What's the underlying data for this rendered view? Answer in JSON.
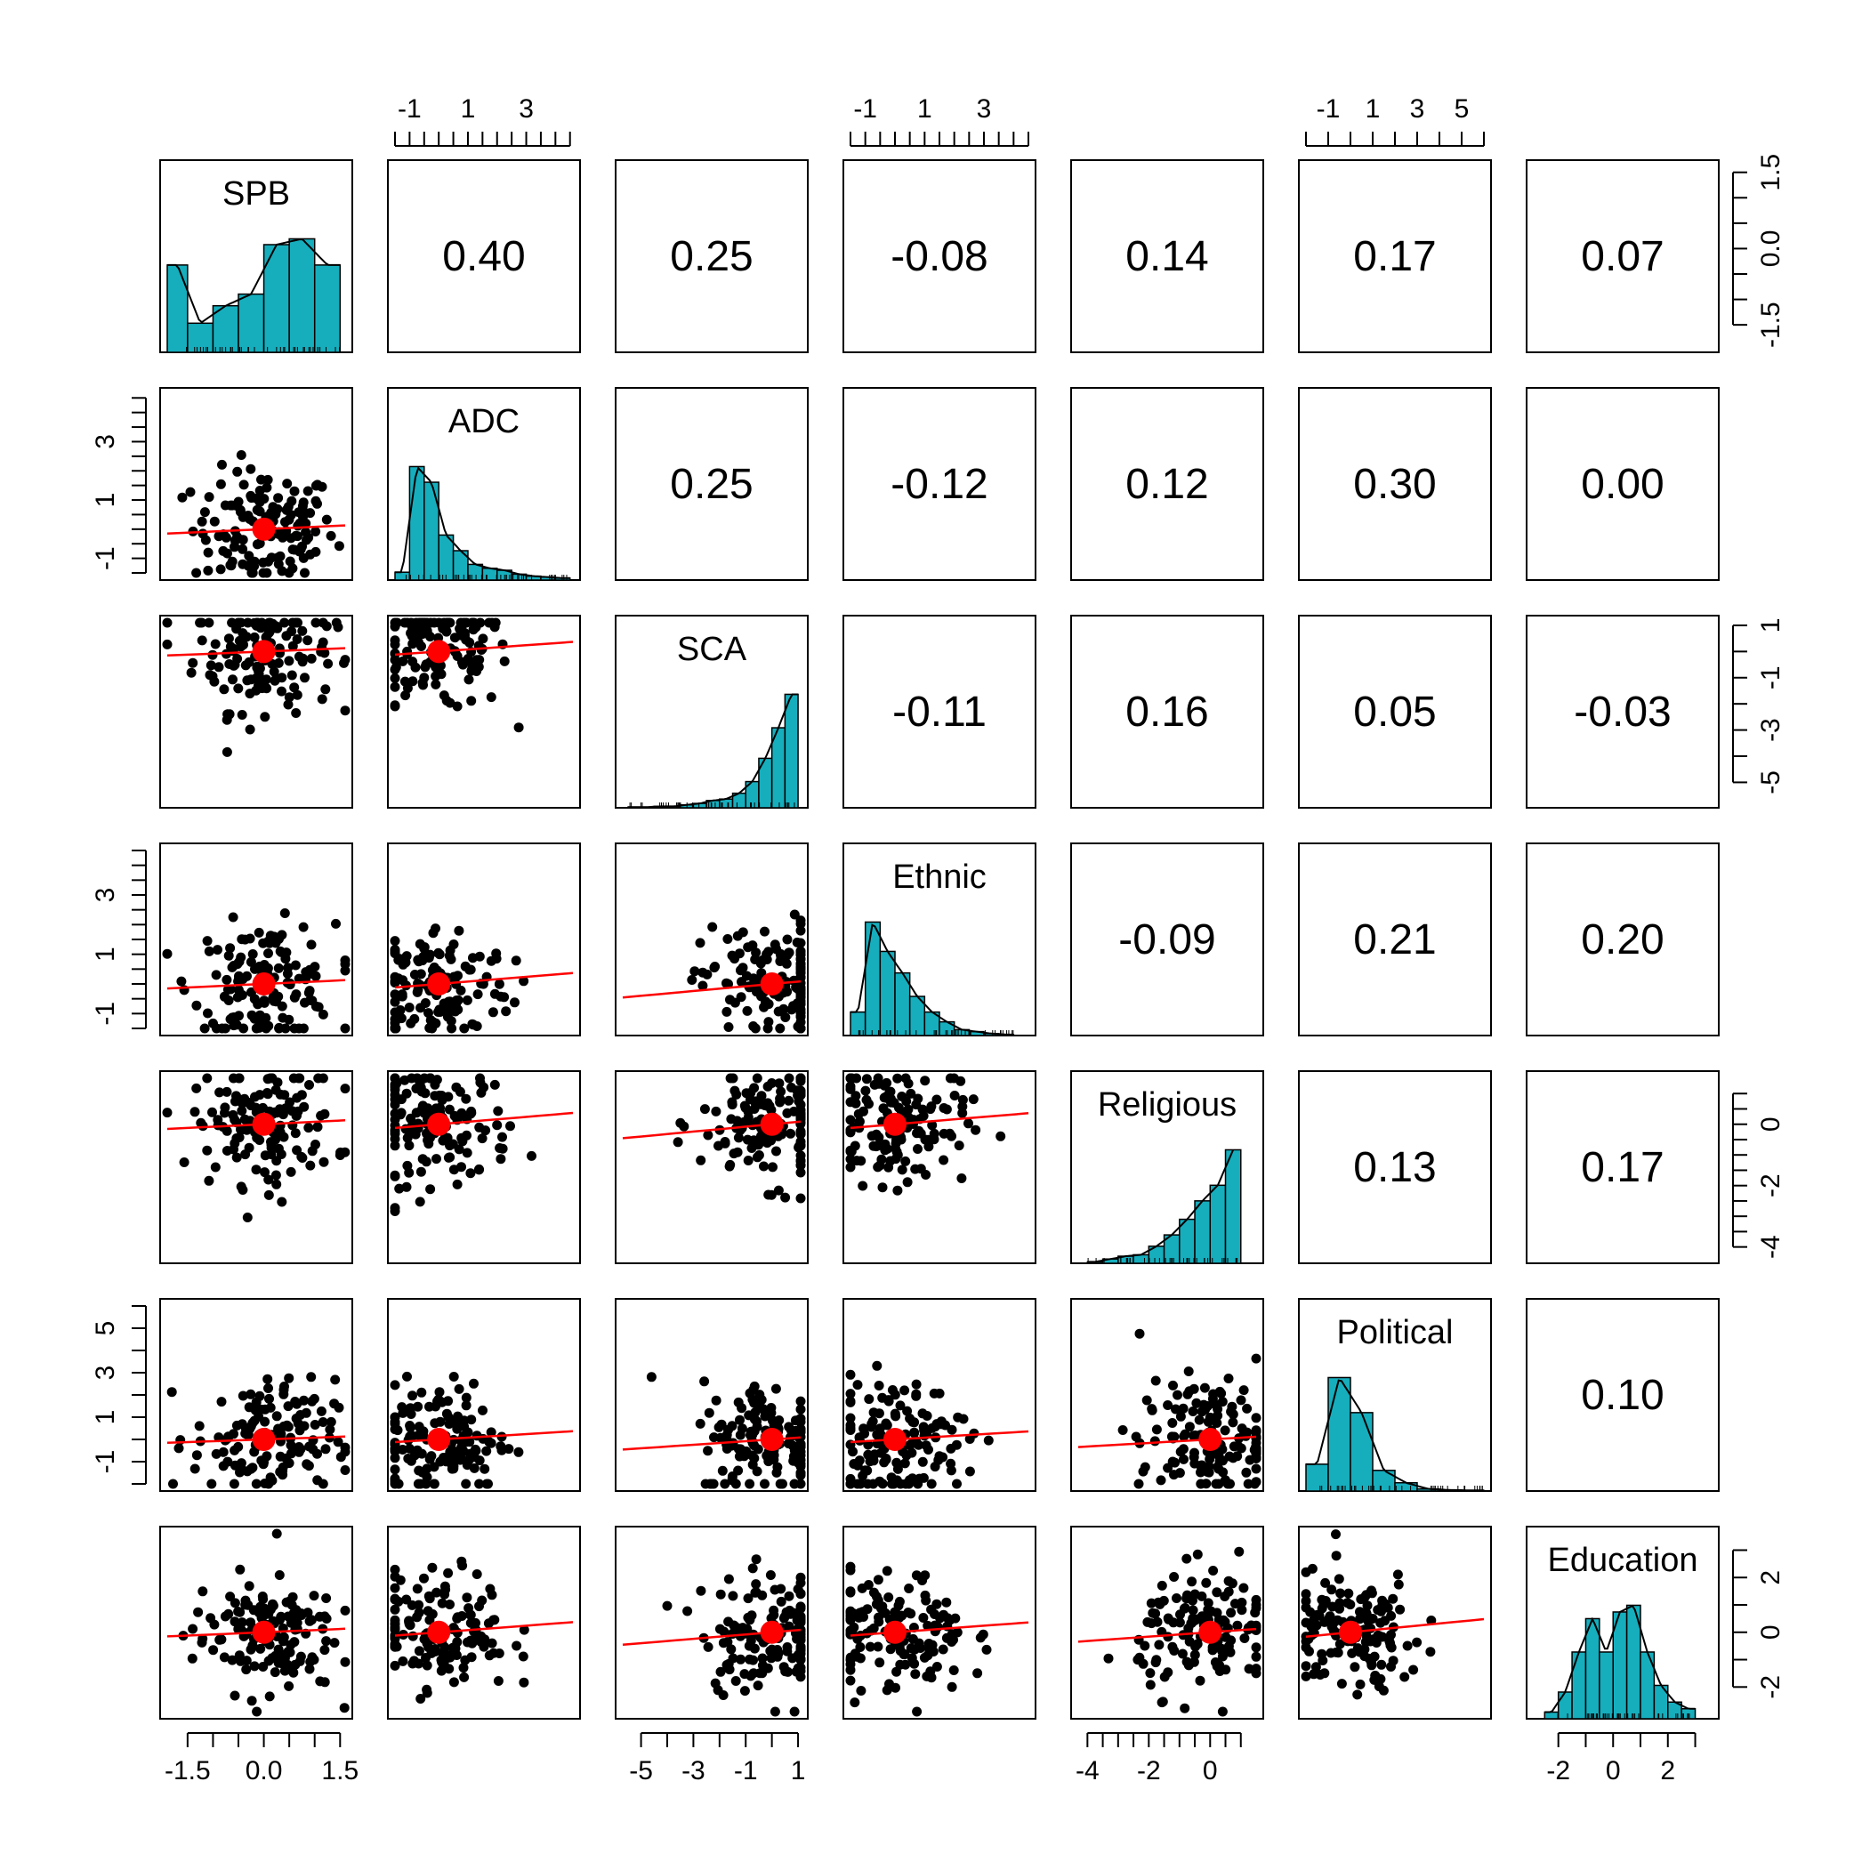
{
  "chart_data": {
    "type": "scatter-matrix",
    "variables": [
      "SPB",
      "ADC",
      "SCA",
      "Ethnic",
      "Religious",
      "Political",
      "Education"
    ],
    "correlations": [
      [
        "",
        "0.40",
        "0.25",
        "-0.08",
        "0.14",
        "0.17",
        "0.07"
      ],
      [
        "",
        "",
        "0.25",
        "-0.12",
        "0.12",
        "0.30",
        "0.00"
      ],
      [
        "",
        "",
        "",
        "-0.11",
        "0.16",
        "0.05",
        "-0.03"
      ],
      [
        "",
        "",
        "",
        "",
        "-0.09",
        "0.21",
        "0.20"
      ],
      [
        "",
        "",
        "",
        "",
        "",
        "0.13",
        "0.17"
      ],
      [
        "",
        "",
        "",
        "",
        "",
        "",
        "0.10"
      ],
      [
        "",
        "",
        "",
        "",
        "",
        "",
        ""
      ]
    ],
    "ranges": [
      [
        -1.9,
        1.6
      ],
      [
        -1.5,
        4.6
      ],
      [
        -5.7,
        1.1
      ],
      [
        -1.5,
        4.5
      ],
      [
        -4.3,
        1.5
      ],
      [
        -2.0,
        6.0
      ],
      [
        -2.9,
        3.6
      ]
    ],
    "axes": {
      "top": [
        {
          "col": 1,
          "labels": [
            "-1",
            "1",
            "3"
          ],
          "values": [
            -1,
            1,
            3
          ],
          "minor": [
            -1.5,
            -1,
            -0.5,
            0,
            0.5,
            1,
            1.5,
            2,
            2.5,
            3,
            3.5,
            4,
            4.5
          ]
        },
        {
          "col": 3,
          "labels": [
            "-1",
            "1",
            "3"
          ],
          "values": [
            -1,
            1,
            3
          ],
          "minor": [
            -1.5,
            -1,
            -0.5,
            0,
            0.5,
            1,
            1.5,
            2,
            2.5,
            3,
            3.5,
            4,
            4.5
          ]
        },
        {
          "col": 5,
          "labels": [
            "-1",
            "1",
            "3",
            "5"
          ],
          "values": [
            -1,
            1,
            3,
            5
          ],
          "minor": [
            -2,
            -1,
            0,
            1,
            2,
            3,
            4,
            5,
            6
          ]
        }
      ],
      "bottom": [
        {
          "col": 0,
          "labels": [
            "-1.5",
            "0.0",
            "1.5"
          ],
          "values": [
            -1.5,
            0,
            1.5
          ],
          "minor": [
            -1.5,
            -1,
            -0.5,
            0,
            0.5,
            1,
            1.5
          ]
        },
        {
          "col": 2,
          "labels": [
            "-5",
            "-3",
            "-1",
            "1"
          ],
          "values": [
            -5,
            -3,
            -1,
            1
          ],
          "minor": [
            -5,
            -4,
            -3,
            -2,
            -1,
            0,
            1
          ]
        },
        {
          "col": 4,
          "labels": [
            "-4",
            "-2",
            "0"
          ],
          "values": [
            -4,
            -2,
            0
          ],
          "minor": [
            -4,
            -3.5,
            -3,
            -2.5,
            -2,
            -1.5,
            -1,
            -0.5,
            0,
            0.5,
            1
          ]
        },
        {
          "col": 6,
          "labels": [
            "-2",
            "0",
            "2"
          ],
          "values": [
            -2,
            0,
            2
          ],
          "minor": [
            -2,
            -1,
            0,
            1,
            2,
            3
          ]
        }
      ],
      "left": [
        {
          "row": 1,
          "labels": [
            "-1",
            "1",
            "3"
          ],
          "values": [
            -1,
            1,
            3
          ],
          "minor": [
            -1.5,
            -1,
            -0.5,
            0,
            0.5,
            1,
            1.5,
            2,
            2.5,
            3,
            3.5,
            4,
            4.5
          ]
        },
        {
          "row": 3,
          "labels": [
            "-1",
            "1",
            "3"
          ],
          "values": [
            -1,
            1,
            3
          ],
          "minor": [
            -1.5,
            -1,
            -0.5,
            0,
            0.5,
            1,
            1.5,
            2,
            2.5,
            3,
            3.5,
            4,
            4.5
          ]
        },
        {
          "row": 5,
          "labels": [
            "-1",
            "1",
            "3",
            "5"
          ],
          "values": [
            -1,
            1,
            3,
            5
          ],
          "minor": [
            -2,
            -1,
            0,
            1,
            2,
            3,
            4,
            5,
            6
          ]
        }
      ],
      "right": [
        {
          "row": 0,
          "labels": [
            "-1.5",
            "0.0",
            "1.5"
          ],
          "values": [
            -1.5,
            0,
            1.5
          ],
          "minor": [
            -1.5,
            -1,
            -0.5,
            0,
            0.5,
            1,
            1.5
          ]
        },
        {
          "row": 2,
          "labels": [
            "-5",
            "-3",
            "-1",
            "1"
          ],
          "values": [
            -5,
            -3,
            -1,
            1
          ],
          "minor": [
            -5,
            -4,
            -3,
            -2,
            -1,
            0,
            1
          ]
        },
        {
          "row": 4,
          "labels": [
            "-4",
            "-2",
            "0"
          ],
          "values": [
            -4,
            -2,
            0
          ],
          "minor": [
            -4,
            -3.5,
            -3,
            -2.5,
            -2,
            -1.5,
            -1,
            -0.5,
            0,
            0.5,
            1
          ]
        },
        {
          "row": 6,
          "labels": [
            "-2",
            "0",
            "2"
          ],
          "values": [
            -2,
            0,
            2
          ],
          "minor": [
            -2,
            -1,
            0,
            1,
            2,
            3
          ]
        }
      ]
    },
    "histograms": [
      {
        "var": "SPB",
        "bins": [
          -1.9,
          -1.5,
          -1.0,
          -0.5,
          0.0,
          0.5,
          1.0,
          1.5
        ],
        "density": [
          0.3,
          0.1,
          0.16,
          0.2,
          0.37,
          0.39,
          0.3
        ]
      },
      {
        "var": "ADC",
        "bins": [
          -1.5,
          -1.0,
          -0.5,
          0.0,
          0.5,
          1.0,
          1.5,
          2.0,
          2.5,
          3.0,
          3.5,
          4.0,
          4.5
        ],
        "density": [
          0.04,
          0.58,
          0.5,
          0.23,
          0.15,
          0.08,
          0.06,
          0.05,
          0.03,
          0.02,
          0.015,
          0.01
        ]
      },
      {
        "var": "SCA",
        "bins": [
          -5.5,
          -5.0,
          -4.5,
          -4.0,
          -3.5,
          -3.0,
          -2.5,
          -2.0,
          -1.5,
          -1.0,
          -0.5,
          0.0,
          0.5,
          1.0
        ],
        "density": [
          0.005,
          0.005,
          0.01,
          0.01,
          0.02,
          0.03,
          0.05,
          0.06,
          0.1,
          0.18,
          0.34,
          0.55,
          0.78
        ]
      },
      {
        "var": "Ethnic",
        "bins": [
          -1.5,
          -1.0,
          -0.5,
          0.0,
          0.5,
          1.0,
          1.5,
          2.0,
          2.5,
          3.0,
          3.5,
          4.0
        ],
        "density": [
          0.12,
          0.58,
          0.43,
          0.32,
          0.2,
          0.12,
          0.07,
          0.03,
          0.02,
          0.01,
          0.005
        ]
      },
      {
        "var": "Religious",
        "bins": [
          -4.0,
          -3.5,
          -3.0,
          -2.5,
          -2.0,
          -1.5,
          -1.0,
          -0.5,
          0.0,
          0.5,
          1.0
        ],
        "density": [
          0.01,
          0.03,
          0.05,
          0.06,
          0.12,
          0.2,
          0.31,
          0.44,
          0.55,
          0.8,
          0.24
        ]
      },
      {
        "var": "Political",
        "bins": [
          -2.0,
          -1.0,
          0.0,
          1.0,
          2.0,
          3.0,
          4.0,
          5.0,
          6.0
        ],
        "density": [
          0.13,
          0.55,
          0.38,
          0.1,
          0.04,
          0.01,
          0.005,
          0.003
        ]
      },
      {
        "var": "Education",
        "bins": [
          -2.5,
          -2.0,
          -1.5,
          -1.0,
          -0.5,
          0.0,
          0.5,
          1.0,
          1.5,
          2.0,
          2.5,
          3.0
        ],
        "density": [
          0.02,
          0.08,
          0.2,
          0.3,
          0.2,
          0.32,
          0.34,
          0.2,
          0.1,
          0.05,
          0.03
        ]
      }
    ]
  }
}
